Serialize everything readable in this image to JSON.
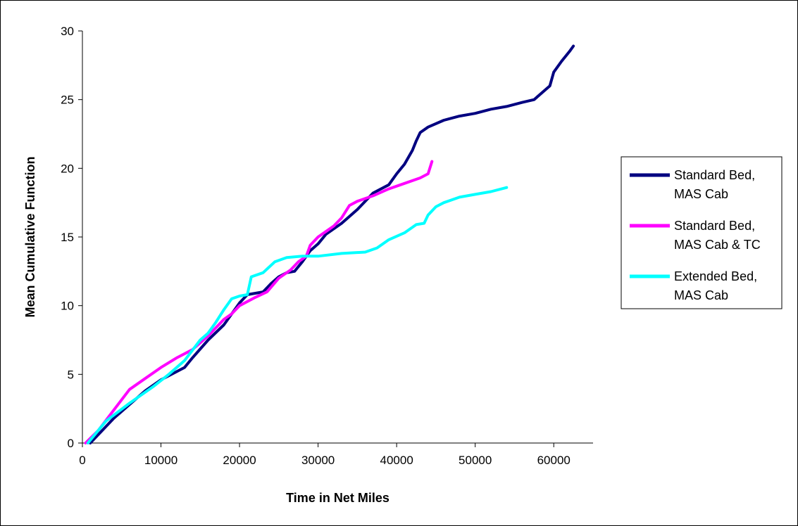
{
  "chart_data": {
    "type": "line",
    "title": "",
    "xlabel": "Time in Net Miles",
    "ylabel": "Mean Cumulative Function",
    "xlim": [
      0,
      65000
    ],
    "ylim": [
      0,
      30
    ],
    "xticks": [
      0,
      10000,
      20000,
      30000,
      40000,
      50000,
      60000
    ],
    "yticks": [
      0,
      5,
      10,
      15,
      20,
      25,
      30
    ],
    "xtick_labels": [
      "0",
      "10000",
      "20000",
      "30000",
      "40000",
      "50000",
      "60000"
    ],
    "ytick_labels": [
      "0",
      "5",
      "10",
      "15",
      "20",
      "25",
      "30"
    ],
    "grid": false,
    "legend_position": "right",
    "series": [
      {
        "name": "Standard Bed, MAS Cab",
        "legend_lines": [
          "Standard Bed,",
          "MAS Cab"
        ],
        "color": "#000080",
        "points": [
          [
            1000,
            0
          ],
          [
            4000,
            1.8
          ],
          [
            8000,
            3.8
          ],
          [
            10000,
            4.6
          ],
          [
            13000,
            5.5
          ],
          [
            14000,
            6.2
          ],
          [
            16000,
            7.5
          ],
          [
            18000,
            8.6
          ],
          [
            20000,
            10.2
          ],
          [
            21000,
            10.8
          ],
          [
            23000,
            11.0
          ],
          [
            24000,
            11.6
          ],
          [
            25000,
            12.1
          ],
          [
            26000,
            12.4
          ],
          [
            27000,
            12.5
          ],
          [
            28000,
            13.2
          ],
          [
            29000,
            14.0
          ],
          [
            30000,
            14.5
          ],
          [
            31000,
            15.2
          ],
          [
            33000,
            16.0
          ],
          [
            34000,
            16.5
          ],
          [
            35000,
            17.0
          ],
          [
            36000,
            17.6
          ],
          [
            37000,
            18.2
          ],
          [
            39000,
            18.8
          ],
          [
            40000,
            19.6
          ],
          [
            41000,
            20.3
          ],
          [
            42000,
            21.3
          ],
          [
            42500,
            22.0
          ],
          [
            43000,
            22.6
          ],
          [
            44000,
            23.0
          ],
          [
            46000,
            23.5
          ],
          [
            48000,
            23.8
          ],
          [
            50000,
            24.0
          ],
          [
            52000,
            24.3
          ],
          [
            54000,
            24.5
          ],
          [
            56000,
            24.8
          ],
          [
            57500,
            25.0
          ],
          [
            58500,
            25.5
          ],
          [
            59500,
            26.0
          ],
          [
            60000,
            27.0
          ],
          [
            61000,
            27.8
          ],
          [
            62000,
            28.5
          ],
          [
            62500,
            28.9
          ]
        ]
      },
      {
        "name": "Standard Bed, MAS Cab & TC",
        "legend_lines": [
          "Standard Bed,",
          "MAS Cab & TC"
        ],
        "color": "#FF00FF",
        "points": [
          [
            400,
            0
          ],
          [
            2000,
            0.9
          ],
          [
            4000,
            2.4
          ],
          [
            6000,
            3.9
          ],
          [
            8000,
            4.7
          ],
          [
            10000,
            5.5
          ],
          [
            12000,
            6.2
          ],
          [
            14000,
            6.8
          ],
          [
            16000,
            7.8
          ],
          [
            18000,
            9.0
          ],
          [
            19000,
            9.4
          ],
          [
            20000,
            10.0
          ],
          [
            22000,
            10.6
          ],
          [
            23500,
            11.0
          ],
          [
            25000,
            12.0
          ],
          [
            26500,
            12.6
          ],
          [
            27500,
            13.2
          ],
          [
            28500,
            13.6
          ],
          [
            29000,
            14.4
          ],
          [
            30000,
            15.0
          ],
          [
            31000,
            15.4
          ],
          [
            32000,
            15.8
          ],
          [
            33000,
            16.4
          ],
          [
            34000,
            17.3
          ],
          [
            35000,
            17.6
          ],
          [
            37000,
            18.0
          ],
          [
            39000,
            18.5
          ],
          [
            41000,
            18.9
          ],
          [
            43000,
            19.3
          ],
          [
            44000,
            19.6
          ],
          [
            44500,
            20.5
          ]
        ]
      },
      {
        "name": "Extended Bed, MAS Cab",
        "legend_lines": [
          "Extended Bed,",
          "MAS Cab"
        ],
        "color": "#00FFFF",
        "points": [
          [
            700,
            0
          ],
          [
            3000,
            1.6
          ],
          [
            6000,
            2.9
          ],
          [
            9000,
            4.1
          ],
          [
            11000,
            5.0
          ],
          [
            13000,
            6.0
          ],
          [
            15000,
            7.5
          ],
          [
            16000,
            8.0
          ],
          [
            17000,
            8.8
          ],
          [
            18000,
            9.7
          ],
          [
            19000,
            10.5
          ],
          [
            20000,
            10.7
          ],
          [
            21000,
            10.8
          ],
          [
            21500,
            12.1
          ],
          [
            23000,
            12.4
          ],
          [
            24500,
            13.2
          ],
          [
            26000,
            13.5
          ],
          [
            28000,
            13.6
          ],
          [
            30000,
            13.6
          ],
          [
            33000,
            13.8
          ],
          [
            36000,
            13.9
          ],
          [
            37500,
            14.2
          ],
          [
            39000,
            14.8
          ],
          [
            41000,
            15.3
          ],
          [
            42500,
            15.9
          ],
          [
            43500,
            16.0
          ],
          [
            44000,
            16.6
          ],
          [
            45000,
            17.2
          ],
          [
            46000,
            17.5
          ],
          [
            48000,
            17.9
          ],
          [
            50000,
            18.1
          ],
          [
            52000,
            18.3
          ],
          [
            54000,
            18.6
          ]
        ]
      }
    ]
  }
}
